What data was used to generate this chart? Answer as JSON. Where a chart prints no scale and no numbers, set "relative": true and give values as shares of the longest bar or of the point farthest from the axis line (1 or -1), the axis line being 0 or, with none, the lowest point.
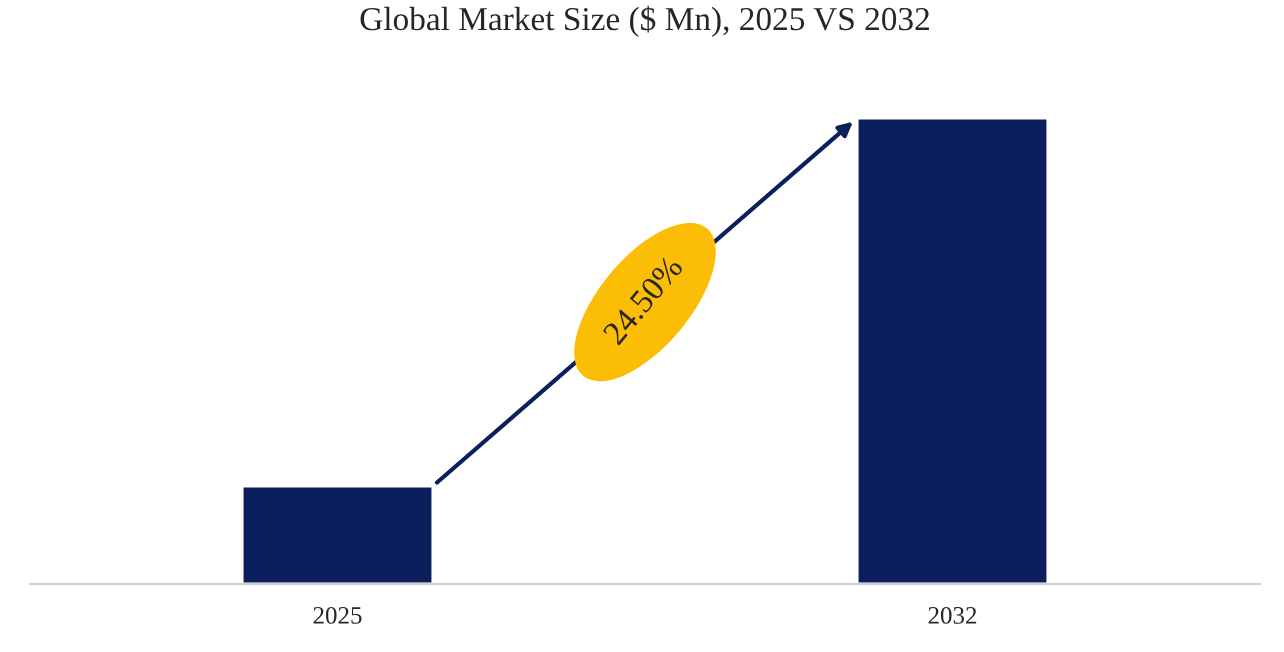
{
  "chart_data": {
    "type": "bar",
    "title": "Global Market Size ($ Mn), 2025 VS 2032",
    "categories": [
      "2025",
      "2032"
    ],
    "values": [
      0.21,
      1
    ],
    "color": "#0a1f5c",
    "relative": true,
    "annotations": [
      "24.50%"
    ],
    "grid": false,
    "legend": false
  }
}
